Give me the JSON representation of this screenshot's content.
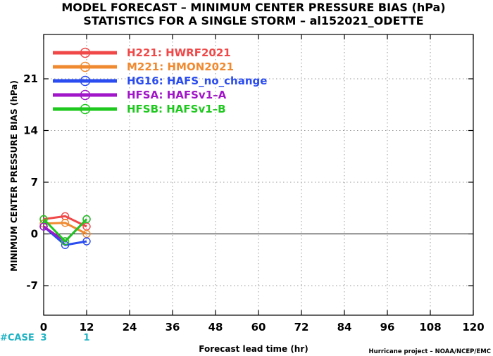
{
  "chart_data": {
    "type": "line",
    "title": "MODEL FORECAST – MINIMUM CENTER PRESSURE BIAS (hPa)",
    "subtitle": "STATISTICS FOR A SINGLE STORM – al152021_ODETTE",
    "xlabel": "Forecast lead time (hr)",
    "ylabel": "MINIMUM CENTER PRESSURE BIAS (hPa)",
    "xlim": [
      0,
      120
    ],
    "ylim": [
      -11,
      27
    ],
    "xticks": [
      0,
      12,
      24,
      36,
      48,
      60,
      72,
      84,
      96,
      108,
      120
    ],
    "yticks": [
      -7,
      0,
      7,
      14,
      21
    ],
    "grid": true,
    "legend_position": "top-left",
    "x": [
      0,
      6,
      12
    ],
    "series": [
      {
        "name": "H221:  HWRF2021",
        "color": "#f04848",
        "values": [
          2.0,
          2.4,
          1.0
        ]
      },
      {
        "name": "M221:  HMON2021",
        "color": "#f08a30",
        "values": [
          1.4,
          1.5,
          0.0
        ]
      },
      {
        "name": "HG16:  HAFS_no_change",
        "color": "#2a4cf0",
        "values": [
          1.0,
          -1.5,
          -1.0
        ]
      },
      {
        "name": "HFSA:  HAFSv1–A",
        "color": "#a016c8",
        "values": [
          1.0,
          -1.0,
          2.0
        ]
      },
      {
        "name": "HFSB:  HAFSv1–B",
        "color": "#1ec81e",
        "values": [
          2.0,
          -1.0,
          2.0
        ]
      }
    ],
    "cases": {
      "label": "#CASE",
      "counts": [
        {
          "x": 0,
          "value": "3"
        },
        {
          "x": 12,
          "value": "1"
        }
      ]
    }
  },
  "credit": "Hurricane project – NOAA/NCEP/EMC"
}
